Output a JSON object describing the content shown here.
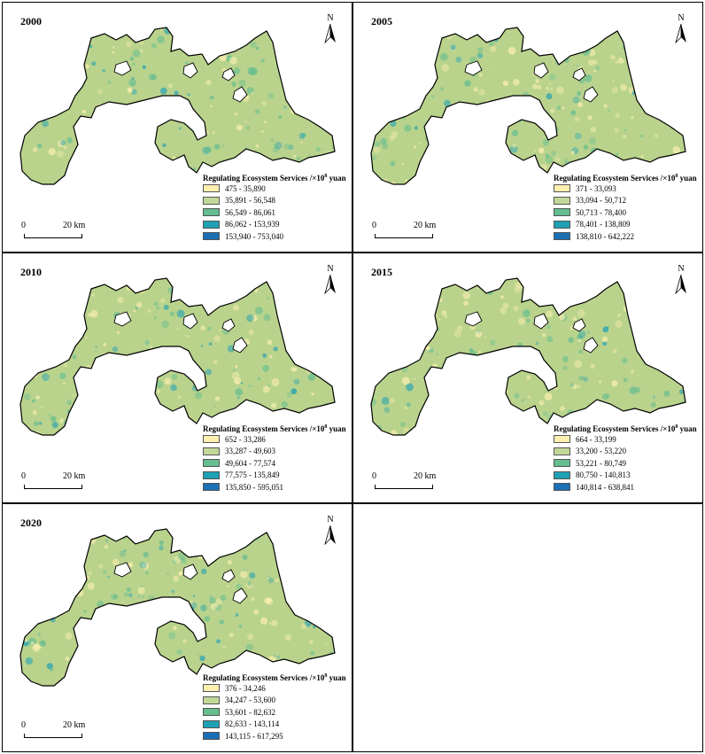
{
  "figure": {
    "panels": [
      {
        "year": "2000",
        "legend_title": "Regulating Ecosystem Services /×10",
        "legend_exp": "8",
        "legend_unit": " yuan",
        "classes": [
          "475 - 35,890",
          "35,891 - 56,548",
          "56,549 - 86,061",
          "86,062 - 153,939",
          "153,940 - 753,040"
        ]
      },
      {
        "year": "2005",
        "legend_title": "Regulating Ecosystem Services /×10",
        "legend_exp": "8",
        "legend_unit": " yuan",
        "classes": [
          "371 - 33,093",
          "33,094 - 50,712",
          "50,713 - 78,400",
          "78,401 - 138,809",
          "138,810 - 642,222"
        ]
      },
      {
        "year": "2010",
        "legend_title": "Regulating Ecosystem Services /×10",
        "legend_exp": "8",
        "legend_unit": " yuan",
        "classes": [
          "652 - 33,286",
          "33,287 - 49,603",
          "49,604 - 77,574",
          "77,575 - 135,849",
          "135,850 - 595,051"
        ]
      },
      {
        "year": "2015",
        "legend_title": "Regulating Ecosystem Services /×10",
        "legend_exp": "8",
        "legend_unit": " yuan",
        "classes": [
          "664 - 33,199",
          "33,200 - 53,220",
          "53,221 - 80,749",
          "80,750 - 140,813",
          "140,814 - 638,841"
        ]
      },
      {
        "year": "2020",
        "legend_title": "Regulating Ecosystem Services /×10",
        "legend_exp": "8",
        "legend_unit": " yuan",
        "classes": [
          "376 - 34,246",
          "34,247 - 53,600",
          "53,601 - 82,632",
          "82,633 - 143,114",
          "143,115 - 617,295"
        ]
      }
    ],
    "class_colors": [
      "#fdf0b0",
      "#c2d898",
      "#66bd8f",
      "#1fa0b4",
      "#1a6fb5"
    ],
    "land_color": "#b9d38d",
    "north_label": "N",
    "scale_zero": "0",
    "scale_label": "20 km"
  }
}
